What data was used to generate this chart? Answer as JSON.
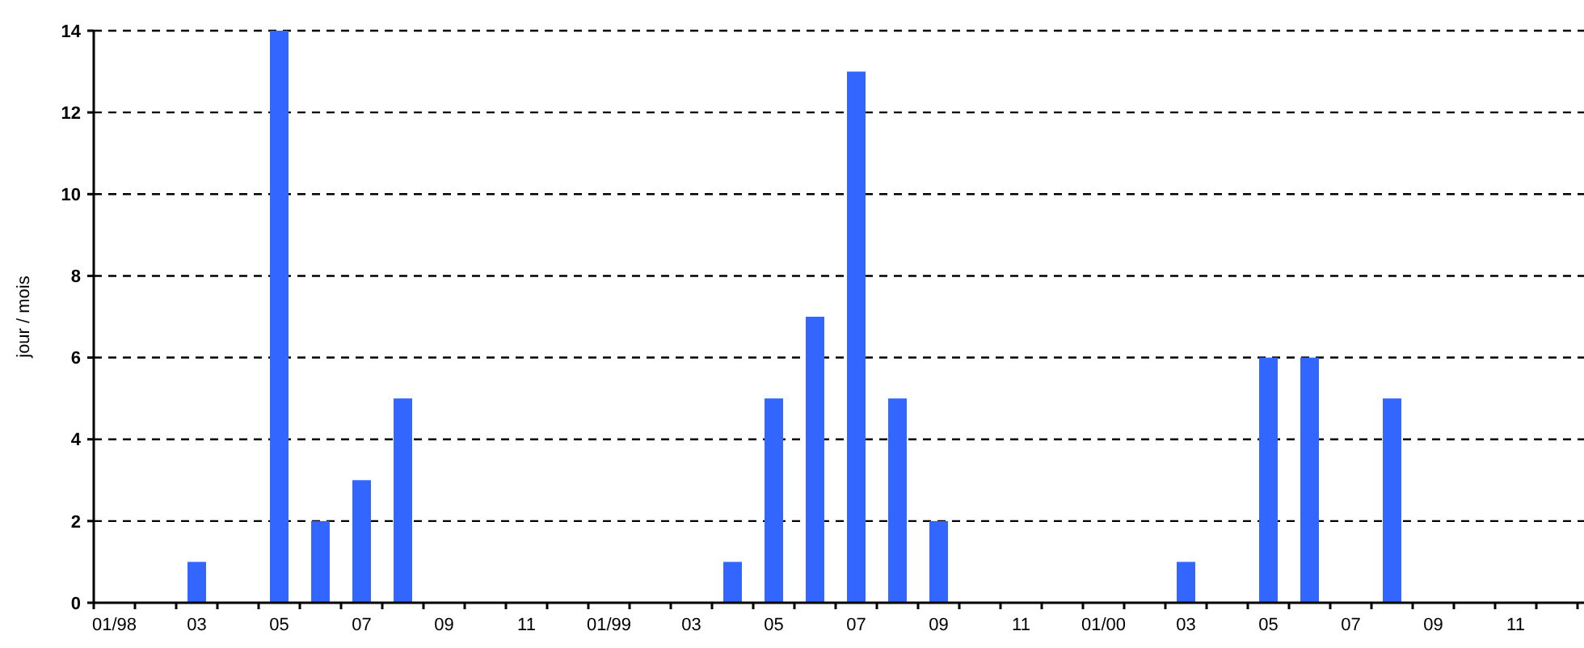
{
  "chart_data": {
    "type": "bar",
    "ylabel": "jour / mois",
    "categories": [
      "01/98",
      null,
      "03",
      null,
      "05",
      null,
      "07",
      null,
      "09",
      null,
      "11",
      null,
      "01/99",
      null,
      "03",
      null,
      "05",
      null,
      "07",
      null,
      "09",
      null,
      "11",
      null,
      "01/00",
      null,
      "03",
      null,
      "05",
      null,
      "07",
      null,
      "09",
      null,
      "11",
      null
    ],
    "values": [
      0,
      0,
      1,
      0,
      14,
      2,
      3,
      5,
      0,
      0,
      0,
      0,
      0,
      0,
      0,
      1,
      5,
      7,
      13,
      5,
      2,
      0,
      0,
      0,
      0,
      0,
      1,
      0,
      6,
      6,
      0,
      5,
      0,
      0,
      0,
      0
    ],
    "color": "#3366ff",
    "ylim": [
      0,
      14
    ],
    "yticks": [
      0,
      2,
      4,
      6,
      8,
      10,
      12,
      14
    ],
    "grid": "y"
  }
}
